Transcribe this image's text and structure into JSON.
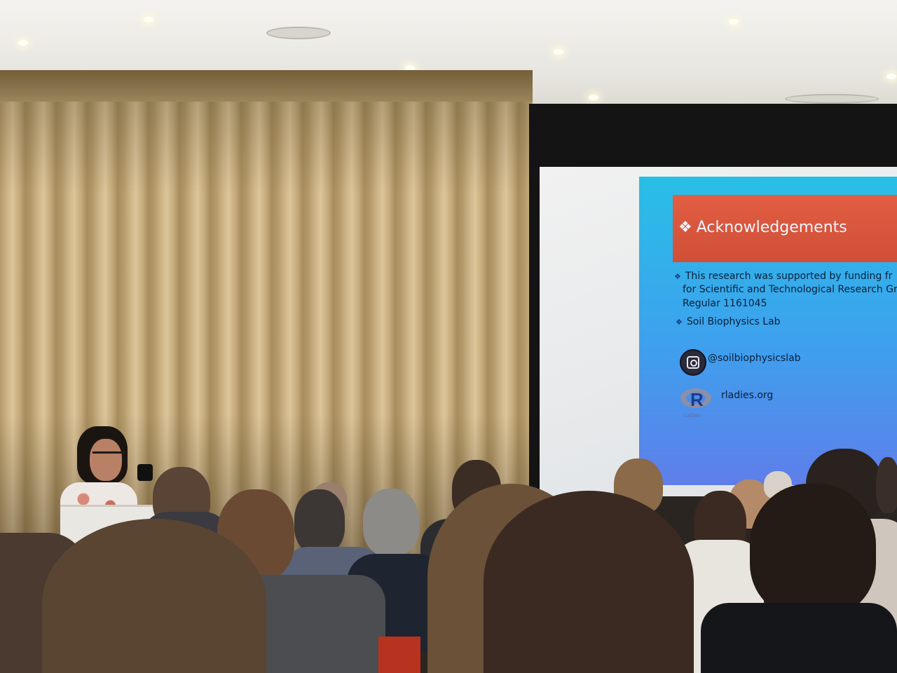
{
  "slide": {
    "title": "Acknowledgements",
    "bullet_glyph": "❖",
    "lines": [
      "This research was supported by funding fr",
      "for Scientific and Technological Research Gr",
      "Regular 1161045"
    ],
    "lab_line": "Soil Biophysics Lab",
    "instagram_handle": "@soilbiophysicslab",
    "rladies_url": "rladies.org",
    "rladies_logo_text": "R",
    "rladies_logo_sub": "Ladies",
    "icons": [
      "instagram-icon",
      "r-ladies-logo-icon"
    ],
    "colors": {
      "header": "#d45540",
      "background": "#30b2ea",
      "text": "#0c1f3a"
    }
  }
}
